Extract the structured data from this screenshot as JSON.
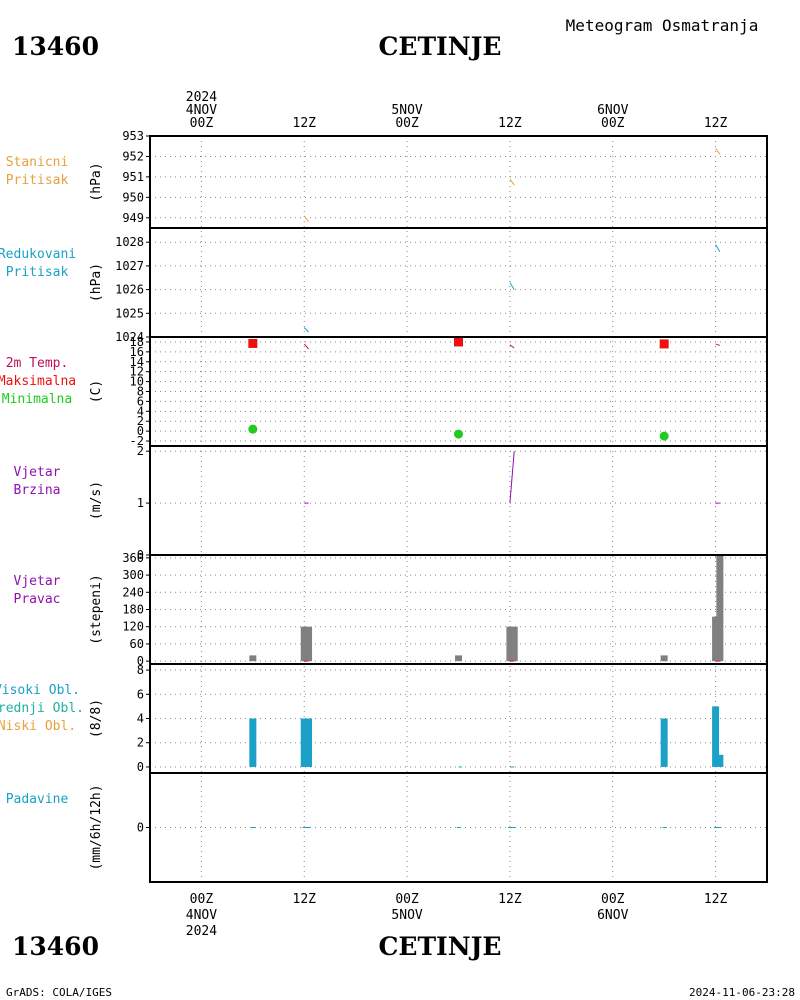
{
  "header": {
    "station_id": "13460",
    "station_name": "CETINJE",
    "title": "Meteogram Osmatranja"
  },
  "footer": {
    "station_id": "13460",
    "station_name": "CETINJE",
    "credit": "GrADS: COLA/IGES",
    "timestamp": "2024-11-06-23:28"
  },
  "time_axis": {
    "top_labels": [
      {
        "id": "t0",
        "lines": [
          "2024",
          "4NOV",
          "00Z"
        ]
      },
      {
        "id": "t1",
        "lines": [
          "12Z"
        ]
      },
      {
        "id": "t2",
        "lines": [
          "5NOV",
          "00Z"
        ]
      },
      {
        "id": "t3",
        "lines": [
          "12Z"
        ]
      },
      {
        "id": "t4",
        "lines": [
          "6NOV",
          "00Z"
        ]
      },
      {
        "id": "t5",
        "lines": [
          "12Z"
        ]
      }
    ],
    "bottom_labels": [
      {
        "id": "b0",
        "lines": [
          "00Z",
          "4NOV",
          "2024"
        ]
      },
      {
        "id": "b1",
        "lines": [
          "12Z"
        ]
      },
      {
        "id": "b2",
        "lines": [
          "00Z",
          "5NOV"
        ]
      },
      {
        "id": "b3",
        "lines": [
          "12Z"
        ]
      },
      {
        "id": "b4",
        "lines": [
          "00Z",
          "6NOV"
        ]
      },
      {
        "id": "b5",
        "lines": [
          "12Z"
        ]
      }
    ]
  },
  "chart_data": [
    {
      "id": "stanicni",
      "type": "line",
      "labels": [
        {
          "text": "Stanicni",
          "color": "#e8a040"
        },
        {
          "text": "Pritisak",
          "color": "#e8a040"
        }
      ],
      "unit": "(hPa)",
      "ylim": [
        948.5,
        953
      ],
      "yticks": [
        949,
        950,
        951,
        952,
        953
      ],
      "segments": [
        {
          "x0": 12,
          "y0": 949.1,
          "x1": 12.5,
          "y1": 948.8,
          "color": "#e8a040"
        },
        {
          "x0": 36,
          "y0": 950.9,
          "x1": 36.5,
          "y1": 950.6,
          "color": "#e8a040"
        },
        {
          "x0": 60,
          "y0": 952.4,
          "x1": 60.5,
          "y1": 952.1,
          "color": "#e8a040"
        }
      ]
    },
    {
      "id": "redukovani",
      "type": "line",
      "labels": [
        {
          "text": "Redukovani",
          "color": "#1ba0c8"
        },
        {
          "text": "Pritisak",
          "color": "#1ba0c8"
        }
      ],
      "unit": "(hPa)",
      "ylim": [
        1024,
        1028.6
      ],
      "yticks": [
        1024,
        1025,
        1026,
        1027,
        1028
      ],
      "segments": [
        {
          "x0": 12,
          "y0": 1024.4,
          "x1": 12.5,
          "y1": 1024.2,
          "color": "#1ba0c8"
        },
        {
          "x0": 36,
          "y0": 1026.3,
          "x1": 36.5,
          "y1": 1026.0,
          "color": "#1ba0c8"
        },
        {
          "x0": 60,
          "y0": 1027.9,
          "x1": 60.5,
          "y1": 1027.6,
          "color": "#1ba0c8"
        }
      ]
    },
    {
      "id": "temp",
      "type": "line",
      "labels": [
        {
          "text": "2m Temp.",
          "color": "#c0105a"
        },
        {
          "text": "Maksimalna",
          "color": "#ee1010"
        },
        {
          "text": "Minimalna",
          "color": "#20cc20"
        }
      ],
      "unit": "(C)",
      "ylim": [
        -3,
        19
      ],
      "yticks": [
        -2,
        0,
        2,
        4,
        6,
        8,
        10,
        12,
        14,
        16,
        18
      ],
      "segments": [
        {
          "x0": 12,
          "y0": 17.6,
          "x1": 12.5,
          "y1": 16.6,
          "color": "#c0105a"
        },
        {
          "x0": 36,
          "y0": 17.4,
          "x1": 36.5,
          "y1": 16.8,
          "color": "#c0105a"
        },
        {
          "x0": 60,
          "y0": 17.6,
          "x1": 60.5,
          "y1": 17.3,
          "color": "#c0105a"
        }
      ],
      "max_points": [
        {
          "x": 6,
          "y": 17.7
        },
        {
          "x": 30,
          "y": 18.0
        },
        {
          "x": 54,
          "y": 17.6
        }
      ],
      "min_points": [
        {
          "x": 6,
          "y": 0.4
        },
        {
          "x": 30,
          "y": -0.6
        },
        {
          "x": 54,
          "y": -1.0
        }
      ]
    },
    {
      "id": "brzina",
      "type": "line",
      "labels": [
        {
          "text": "Vjetar",
          "color": "#9010b0"
        },
        {
          "text": "Brzina",
          "color": "#9010b0"
        }
      ],
      "unit": "(m/s)",
      "ylim": [
        0,
        2.1
      ],
      "yticks": [
        0,
        1,
        2
      ],
      "segments": [
        {
          "x0": 12,
          "y0": 1,
          "x1": 12.5,
          "y1": 1,
          "color": "#9010b0"
        },
        {
          "x0": 36,
          "y0": 1,
          "x1": 36.5,
          "y1": 2,
          "color": "#9010b0"
        },
        {
          "x0": 60,
          "y0": 1,
          "x1": 60.5,
          "y1": 1,
          "color": "#9010b0"
        }
      ]
    },
    {
      "id": "pravac",
      "type": "bar",
      "labels": [
        {
          "text": "Vjetar",
          "color": "#9010b0"
        },
        {
          "text": "Pravac",
          "color": "#9010b0"
        }
      ],
      "unit": "(stepeni)",
      "ylim": [
        -10,
        370
      ],
      "yticks": [
        0,
        60,
        120,
        180,
        240,
        300,
        360
      ],
      "bars": [
        {
          "x": 6,
          "y": 20,
          "color": "#808080"
        },
        {
          "x": 12,
          "y": 120,
          "color": "#808080"
        },
        {
          "x": 12.5,
          "y": 120,
          "color": "#808080"
        },
        {
          "x": 30,
          "y": 20,
          "color": "#808080"
        },
        {
          "x": 36,
          "y": 120,
          "color": "#808080"
        },
        {
          "x": 36.5,
          "y": 120,
          "color": "#808080"
        },
        {
          "x": 54,
          "y": 20,
          "color": "#808080"
        },
        {
          "x": 60,
          "y": 155,
          "color": "#808080"
        },
        {
          "x": 60.5,
          "y": 380,
          "color": "#808080"
        }
      ],
      "segments": [
        {
          "x0": 12,
          "y0": 0,
          "x1": 12.5,
          "y1": 0,
          "color": "#ee1010"
        },
        {
          "x0": 36,
          "y0": 0,
          "x1": 36.5,
          "y1": 0,
          "color": "#ee1010"
        },
        {
          "x0": 60,
          "y0": 0,
          "x1": 60.5,
          "y1": 0,
          "color": "#ee1010"
        }
      ]
    },
    {
      "id": "oblaci",
      "type": "bar",
      "labels": [
        {
          "text": "Visoki Obl.",
          "color": "#1ba0c8"
        },
        {
          "text": "Srednji Obl.",
          "color": "#20b0a0"
        },
        {
          "text": "Niski Obl.",
          "color": "#e8a040"
        }
      ],
      "unit": "(8/8)",
      "ylim": [
        -0.5,
        8.5
      ],
      "yticks": [
        0,
        2,
        4,
        6,
        8
      ],
      "bars": [
        {
          "x": 6,
          "y": 4,
          "color": "#1ba0c8"
        },
        {
          "x": 12,
          "y": 4,
          "color": "#1ba0c8"
        },
        {
          "x": 12.5,
          "y": 4,
          "color": "#1ba0c8"
        },
        {
          "x": 54,
          "y": 4,
          "color": "#1ba0c8"
        },
        {
          "x": 60,
          "y": 5,
          "color": "#1ba0c8"
        },
        {
          "x": 60.5,
          "y": 1,
          "color": "#1ba0c8"
        }
      ],
      "segments": [
        {
          "x0": 30,
          "y0": 0,
          "x1": 30.4,
          "y1": 0,
          "color": "#20b060"
        },
        {
          "x0": 36,
          "y0": 0,
          "x1": 36.5,
          "y1": 0,
          "color": "#20b060"
        }
      ]
    },
    {
      "id": "padavine",
      "type": "line",
      "labels": [
        {
          "text": "Padavine",
          "color": "#1ba0c8"
        }
      ],
      "unit": "(mm/6h/12h)",
      "ylim": [
        -5,
        5
      ],
      "yticks": [
        0
      ],
      "segments": [
        {
          "x0": 5.8,
          "y0": 0,
          "x1": 6.3,
          "y1": 0,
          "color": "#1ba0c8"
        },
        {
          "x0": 11.8,
          "y0": 0,
          "x1": 12.7,
          "y1": 0,
          "color": "#1ba0c8"
        },
        {
          "x0": 29.8,
          "y0": 0,
          "x1": 30.3,
          "y1": 0,
          "color": "#1ba0c8"
        },
        {
          "x0": 35.8,
          "y0": 0,
          "x1": 36.7,
          "y1": 0,
          "color": "#1ba0c8"
        },
        {
          "x0": 53.8,
          "y0": 0,
          "x1": 54.3,
          "y1": 0,
          "color": "#1ba0c8"
        },
        {
          "x0": 59.8,
          "y0": 0,
          "x1": 60.7,
          "y1": 0,
          "color": "#1ba0c8"
        }
      ]
    }
  ]
}
